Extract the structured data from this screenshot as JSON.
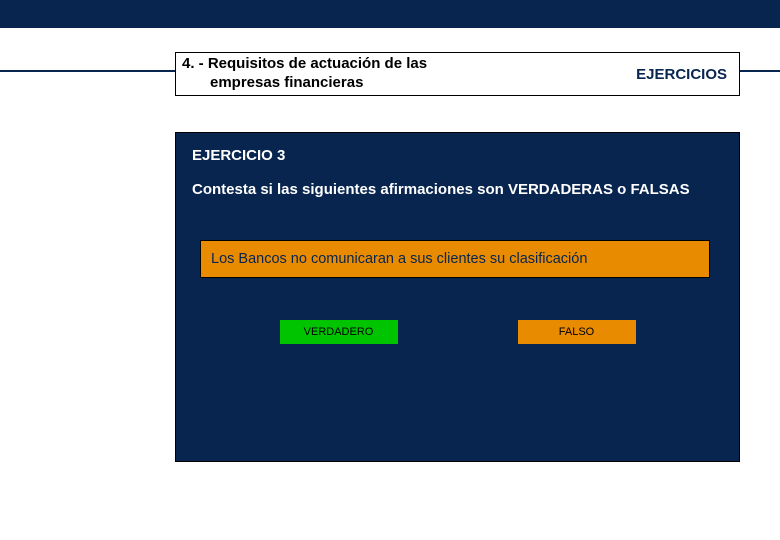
{
  "colors": {
    "navy": "#07254f",
    "orange": "#e88b00",
    "green": "#00c400",
    "white": "#ffffff",
    "black": "#000000"
  },
  "header": {
    "title_line1": "4. - Requisitos de actuación de las",
    "title_line2": "empresas financieras",
    "right_label": "EJERCICIOS"
  },
  "exercise": {
    "label": "EJERCICIO 3",
    "instruction": "Contesta si las siguientes afirmaciones son VERDADERAS o FALSAS",
    "statement": "Los Bancos no comunicaran a sus clientes su clasificación",
    "true_label": "VERDADERO",
    "false_label": "FALSO"
  }
}
